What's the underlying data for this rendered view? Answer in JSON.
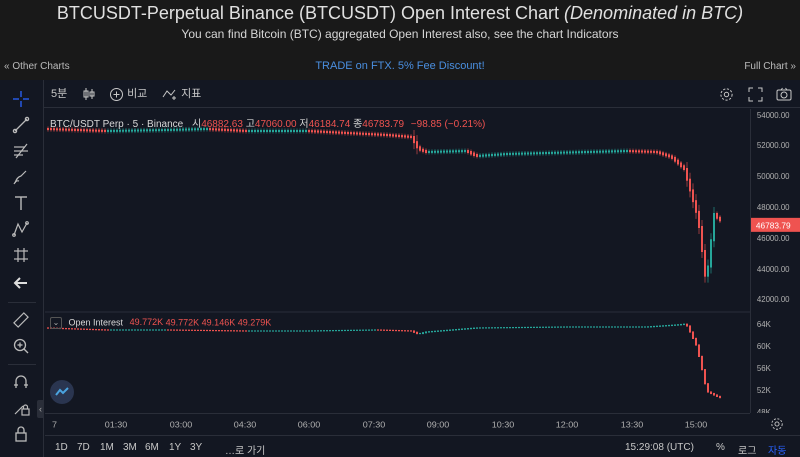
{
  "header": {
    "title_main": "BTCUSDT-Perpetual Binance (BTCUSDT) Open Interest Chart ",
    "title_italic": "(Denominated in BTC)",
    "subtitle": "You can find Bitcoin (BTC) aggregated Open Interest also, see the chart Indicators",
    "nav_left": "« Other Charts",
    "nav_center": "TRADE on FTX. 5% Fee Discount!",
    "nav_right": "Full Chart »"
  },
  "toolbar": {
    "interval": "5분",
    "compare": "비교",
    "indicators": "지표"
  },
  "legend": {
    "symbol": "BTC/USDT Perp · 5 · Binance",
    "o_label": "시",
    "o_value": "46882.63",
    "h_label": "고",
    "h_value": "47060.00",
    "l_label": "저",
    "l_value": "46184.74",
    "c_label": "종",
    "c_value": "46783.79",
    "change": "−98.85 (−0.21%)"
  },
  "oi_legend": {
    "name": "Open Interest",
    "v1": "49.772K",
    "v2": "49.772K",
    "v3": "49.146K",
    "v4": "49.279K"
  },
  "price_axis": {
    "ticks": [
      "54000.00",
      "52000.00",
      "50000.00",
      "48000.00",
      "46000.00",
      "44000.00",
      "42000.00"
    ],
    "last_price": "46783.79",
    "last_price_color": "#ef5350"
  },
  "oi_axis": {
    "ticks": [
      "64K",
      "60K",
      "56K",
      "52K",
      "48K"
    ]
  },
  "time_axis": {
    "ticks": [
      "7",
      "01:30",
      "03:00",
      "04:30",
      "06:00",
      "07:30",
      "09:00",
      "10:30",
      "12:00",
      "13:30",
      "15:00"
    ]
  },
  "bottom_bar": {
    "ranges": [
      "1D",
      "7D",
      "1M",
      "3M",
      "6M",
      "1Y",
      "3Y"
    ],
    "goto": "…로 가기",
    "clock": "15:29:08 (UTC)",
    "pct": "%",
    "log": "로그",
    "auto": "자동"
  },
  "colors": {
    "up": "#26a69a",
    "down": "#ef5350",
    "background": "#131722",
    "link": "#4a8fe0"
  }
}
